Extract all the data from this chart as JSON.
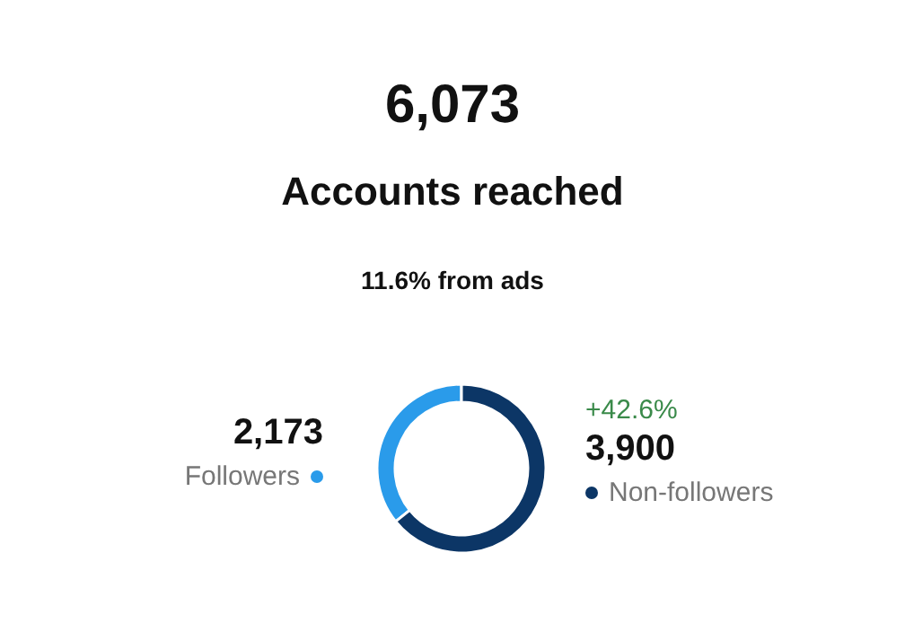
{
  "chart_data": {
    "type": "donut",
    "title": "6,073",
    "subtitle": "Accounts reached",
    "annotations": [
      "11.6% from ads",
      "+42.6%"
    ],
    "categories": [
      "Followers",
      "Non-followers"
    ],
    "values": [
      2173,
      3900
    ],
    "colors": [
      "#2a9bea",
      "#0c3666"
    ],
    "value_labels": [
      "2,173",
      "3,900"
    ]
  }
}
